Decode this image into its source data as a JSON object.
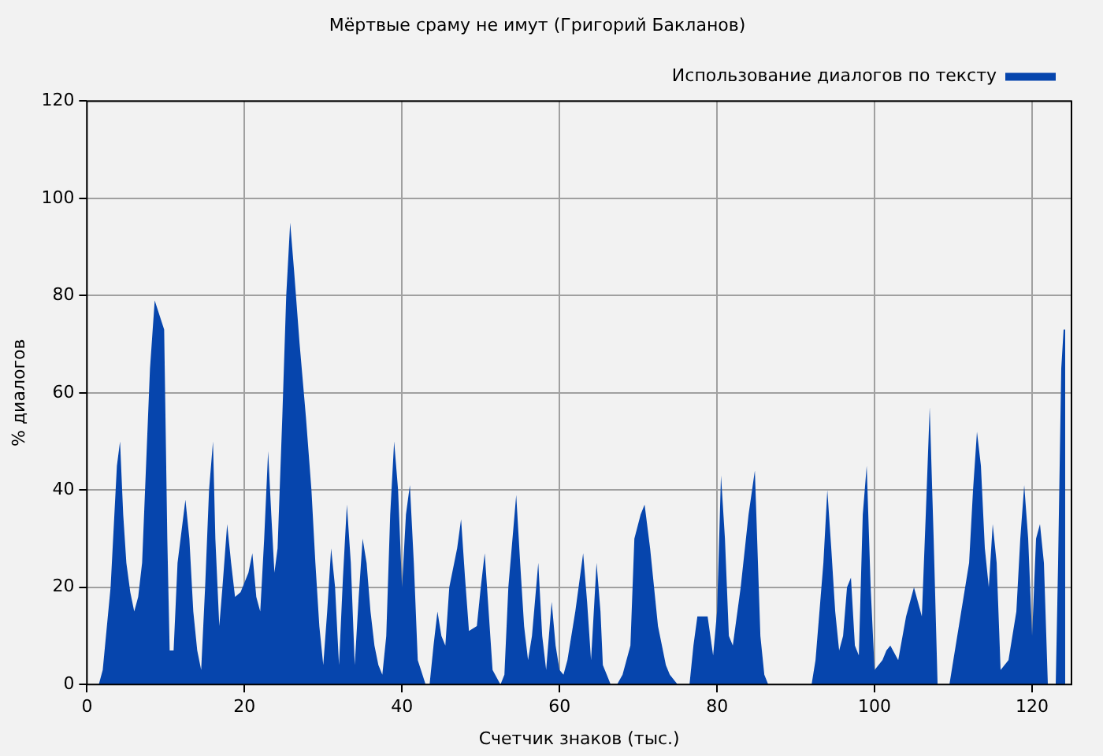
{
  "chart_data": {
    "type": "area",
    "title": "Мёртвые сраму не имут (Григорий Бакланов)",
    "xlabel": "Счетчик знаков (тыс.)",
    "ylabel": "% диалогов",
    "xlim": [
      0,
      125
    ],
    "xticks": [
      0,
      20,
      40,
      60,
      80,
      100,
      120
    ],
    "ylim": [
      0,
      120
    ],
    "yticks": [
      0,
      20,
      40,
      60,
      80,
      100,
      120
    ],
    "grid": true,
    "legend": "top right",
    "series": [
      {
        "name": "Использование диалогов по тексту",
        "color": "#0645ad",
        "x": [
          0,
          1.5,
          2,
          3,
          3.8,
          4.2,
          4.6,
          5,
          5.5,
          6,
          6.5,
          7,
          7.5,
          8,
          8.6,
          9.2,
          9.8,
          10.2,
          10.5,
          11,
          11.5,
          12.5,
          13,
          13.5,
          14,
          14.5,
          15,
          15.5,
          16,
          16.3,
          16.8,
          17.2,
          17.8,
          18.3,
          18.8,
          19.5,
          20.5,
          21,
          21.5,
          22,
          22.5,
          23,
          23.4,
          23.8,
          24.2,
          24.8,
          25.3,
          25.8,
          26.3,
          27,
          27.8,
          28.5,
          29,
          29.5,
          30,
          30.5,
          31,
          31.5,
          32,
          32.5,
          33,
          33.5,
          34,
          34.5,
          35,
          35.5,
          36,
          36.5,
          37,
          37.5,
          38,
          38.5,
          39,
          39.5,
          40,
          40.5,
          41,
          41.5,
          42,
          43,
          43.5,
          44,
          44.5,
          45,
          45.5,
          46,
          47,
          47.5,
          48,
          48.5,
          49.5,
          50,
          50.5,
          51,
          51.5,
          52.5,
          53,
          53.5,
          54.5,
          55,
          55.5,
          56,
          56.5,
          57.3,
          57.8,
          58.3,
          59,
          59.5,
          60,
          60.5,
          61,
          62,
          63,
          63.5,
          64,
          64.7,
          65.2,
          65.5,
          66.5,
          67.3,
          68,
          69,
          69.5,
          70.3,
          70.8,
          71.5,
          72.5,
          73.5,
          74,
          75,
          76.5,
          77,
          77.5,
          78,
          78.8,
          79.5,
          80,
          80.5,
          81,
          81.5,
          82,
          83,
          84,
          84.8,
          85.5,
          86,
          86.5,
          92,
          92.5,
          93.5,
          94,
          94.5,
          95,
          95.5,
          96,
          96.5,
          97,
          97.5,
          98,
          98.5,
          99,
          99.5,
          100,
          101,
          101.5,
          102,
          103,
          104,
          105,
          106,
          106.5,
          107,
          107.5,
          108,
          109.5,
          110,
          111,
          112,
          112.5,
          113,
          113.5,
          114,
          114.5,
          115,
          115.5,
          116,
          117,
          118,
          118.5,
          119,
          119.5,
          120,
          120.5,
          121,
          121.5,
          122,
          123,
          123.3,
          123.7,
          124,
          124.2
        ],
        "values": [
          0,
          0,
          3,
          20,
          45,
          50,
          35,
          25,
          19,
          15,
          18,
          25,
          45,
          65,
          79,
          76,
          73,
          30,
          7,
          7,
          25,
          38,
          30,
          15,
          7,
          3,
          20,
          40,
          50,
          30,
          12,
          20,
          33,
          25,
          18,
          19,
          23,
          27,
          18,
          15,
          30,
          48,
          35,
          23,
          28,
          55,
          80,
          95,
          85,
          70,
          55,
          40,
          25,
          12,
          4,
          15,
          28,
          20,
          4,
          22,
          37,
          25,
          4,
          18,
          30,
          25,
          15,
          8,
          4,
          2,
          10,
          35,
          50,
          40,
          20,
          35,
          41,
          25,
          5,
          0,
          0,
          8,
          15,
          10,
          8,
          20,
          28,
          34,
          22,
          11,
          12,
          20,
          27,
          15,
          3,
          0,
          2,
          20,
          39,
          25,
          12,
          5,
          10,
          25,
          10,
          3,
          17,
          8,
          3,
          2,
          5,
          15,
          27,
          17,
          5,
          25,
          15,
          4,
          0,
          0,
          2,
          8,
          30,
          35,
          37,
          28,
          12,
          4,
          2,
          0,
          0,
          8,
          14,
          14,
          14,
          6,
          15,
          43,
          30,
          10,
          8,
          20,
          35,
          44,
          10,
          2,
          0,
          0,
          5,
          25,
          40,
          28,
          15,
          7,
          10,
          20,
          22,
          8,
          6,
          35,
          45,
          20,
          3,
          5,
          7,
          8,
          5,
          14,
          20,
          14,
          35,
          57,
          30,
          0,
          0,
          5,
          15,
          25,
          40,
          52,
          45,
          28,
          20,
          33,
          25,
          3,
          5,
          15,
          30,
          41,
          30,
          10,
          30,
          33,
          25,
          0,
          0,
          25,
          65,
          73,
          73
        ]
      }
    ]
  }
}
